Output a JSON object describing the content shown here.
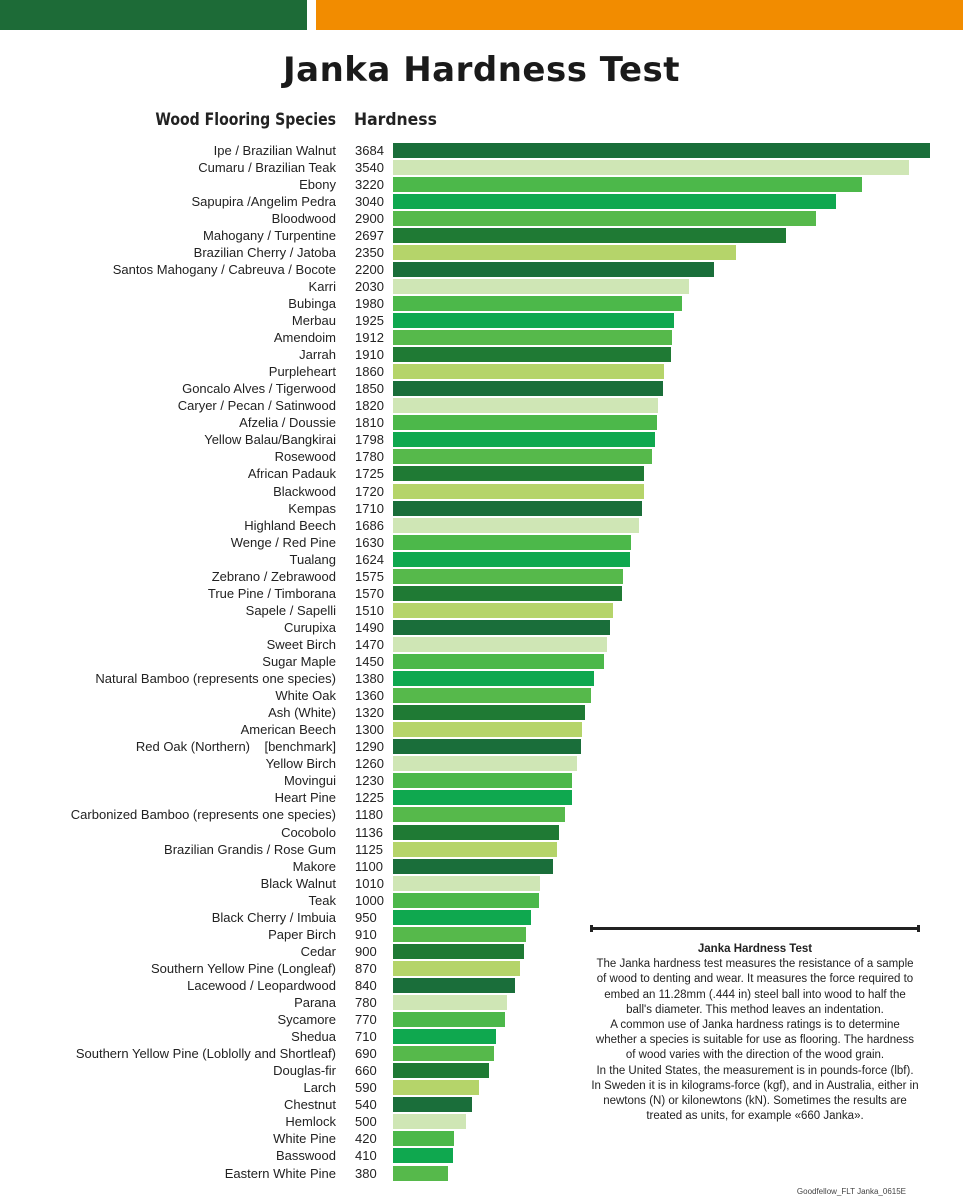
{
  "page": {
    "title": "Janka Hardness Test",
    "footer": "Goodfellow_FLT Janka_0615E"
  },
  "colors": {
    "top_bar_green": "#1d6b37",
    "top_bar_orange": "#f28c00",
    "bar_palette": [
      "#1a6e3a",
      "#cfe6b5",
      "#4cb84a",
      "#0fa84f",
      "#56b94b",
      "#1f7a34",
      "#b5d46a"
    ]
  },
  "chart_data": {
    "type": "bar",
    "orientation": "horizontal",
    "title": "Janka Hardness Test",
    "category_header": "Wood Flooring Species",
    "value_header": "Hardness",
    "xlim": [
      0,
      3684
    ],
    "categories": [
      "Ipe / Brazilian Walnut",
      "Cumaru / Brazilian Teak",
      "Ebony",
      "Sapupira /Angelim Pedra",
      "Bloodwood",
      "Mahogany / Turpentine",
      "Brazilian Cherry / Jatoba",
      "Santos Mahogany / Cabreuva / Bocote",
      "Karri",
      "Bubinga",
      "Merbau",
      "Amendoim",
      "Jarrah",
      "Purpleheart",
      "Goncalo Alves / Tigerwood",
      "Caryer / Pecan / Satinwood",
      "Afzelia / Doussie",
      "Yellow Balau/Bangkirai",
      "Rosewood",
      "African Padauk",
      "Blackwood",
      "Kempas",
      "Highland Beech",
      "Wenge / Red Pine",
      "Tualang",
      "Zebrano / Zebrawood",
      "True Pine / Timborana",
      "Sapele / Sapelli",
      "Curupixa",
      "Sweet Birch",
      "Sugar Maple",
      "Natural Bamboo (represents one species)",
      "White Oak",
      "Ash (White)",
      "American Beech",
      "Red Oak (Northern)    [benchmark]",
      "Yellow Birch",
      "Movingui",
      "Heart Pine",
      "Carbonized Bamboo (represents one species)",
      "Cocobolo",
      "Brazilian Grandis / Rose Gum",
      "Makore",
      "Black Walnut",
      "Teak",
      "Black Cherry / Imbuia",
      "Paper Birch",
      "Cedar",
      "Southern Yellow Pine (Longleaf)",
      "Lacewood / Leopardwood",
      "Parana",
      "Sycamore",
      "Shedua",
      "Southern Yellow Pine (Loblolly and Shortleaf)",
      "Douglas-fir",
      "Larch",
      "Chestnut",
      "Hemlock",
      "White Pine",
      "Basswood",
      "Eastern White Pine"
    ],
    "values": [
      3684,
      3540,
      3220,
      3040,
      2900,
      2697,
      2350,
      2200,
      2030,
      1980,
      1925,
      1912,
      1910,
      1860,
      1850,
      1820,
      1810,
      1798,
      1780,
      1725,
      1720,
      1710,
      1686,
      1630,
      1624,
      1575,
      1570,
      1510,
      1490,
      1470,
      1450,
      1380,
      1360,
      1320,
      1300,
      1290,
      1260,
      1230,
      1225,
      1180,
      1136,
      1125,
      1100,
      1010,
      1000,
      950,
      910,
      900,
      870,
      840,
      780,
      770,
      710,
      690,
      660,
      590,
      540,
      500,
      420,
      410,
      380
    ]
  },
  "info_box": {
    "heading": "Janka Hardness Test",
    "paragraphs": [
      "The Janka hardness test measures the resistance of a sample of wood to denting and wear. It measures the force required to embed an 11.28mm (.444 in) steel ball into wood to half the ball's diameter. This method leaves an indentation.",
      "A common use of Janka hardness ratings is to determine whether a species is suitable for use as flooring. The hardness of wood varies with the direction of the wood grain.",
      "In the United States, the measurement is in pounds-force (lbf). In Sweden it is in kilograms-force (kgf), and in Australia, either in newtons (N) or kilonewtons (kN). Sometimes the results are treated as units, for example «660 Janka»."
    ]
  }
}
